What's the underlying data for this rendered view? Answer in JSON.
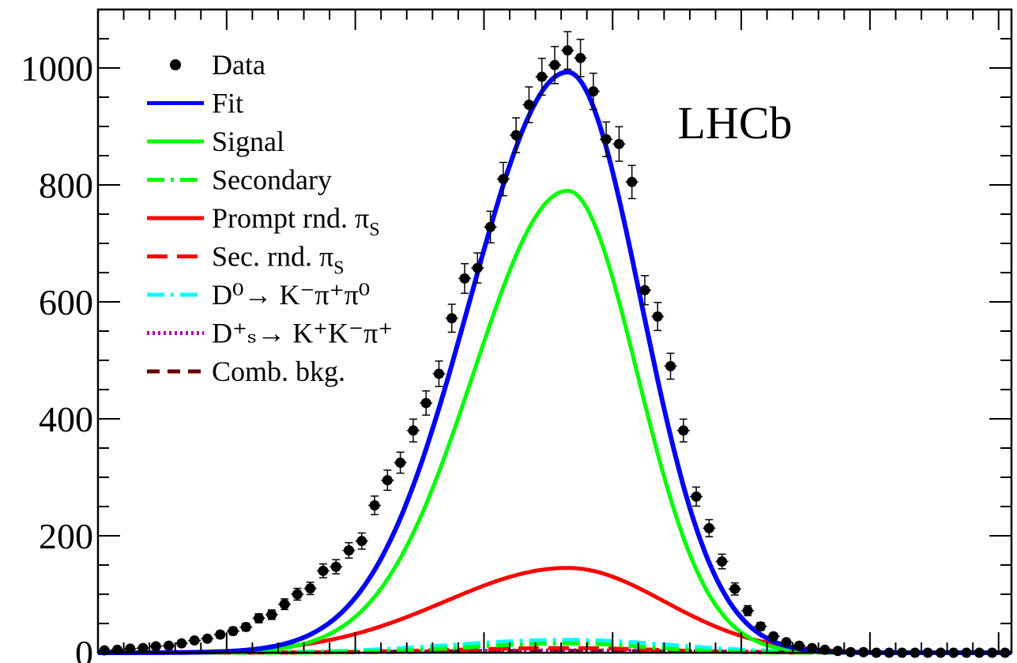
{
  "chart_data": {
    "type": "scatter",
    "title": "",
    "xlabel": "",
    "ylabel": "",
    "annotation": "LHCb",
    "ylim": [
      0,
      1100
    ],
    "xlim": [
      0,
      71
    ],
    "y_ticks": [
      0,
      200,
      400,
      600,
      800,
      1000
    ],
    "y_tick_labels": [
      "0",
      "200",
      "400",
      "600",
      "800",
      "1000"
    ],
    "grid": false,
    "legend_position": "top-left",
    "legend": [
      {
        "key": "data",
        "label": "Data",
        "style": "marker",
        "color": "#000000"
      },
      {
        "key": "fit",
        "label": "Fit",
        "style": "solid",
        "color": "#0000ff"
      },
      {
        "key": "signal",
        "label": "Signal",
        "style": "solid",
        "color": "#00ff00"
      },
      {
        "key": "secondary",
        "label": "Secondary",
        "style": "dashdot",
        "color": "#00ff00"
      },
      {
        "key": "prompt_rnd",
        "label": "Prompt rnd. π",
        "sub": "S",
        "style": "solid",
        "color": "#ff0000"
      },
      {
        "key": "sec_rnd",
        "label": "Sec. rnd. π",
        "sub": "S",
        "style": "longdash",
        "color": "#ff0000"
      },
      {
        "key": "d0_kpipi0",
        "label": "D⁰→ K⁻π⁺π⁰",
        "style": "dashdot",
        "color": "#00ffff"
      },
      {
        "key": "ds_kkpi",
        "label": "D⁺ₛ→ K⁺K⁻π⁺",
        "style": "dotted",
        "color": "#aa00aa"
      },
      {
        "key": "comb_bkg",
        "label": "Comb. bkg.",
        "style": "dashed",
        "color": "#660000"
      }
    ],
    "data": {
      "x": [
        0.5,
        1.5,
        2.5,
        3.5,
        4.5,
        5.5,
        6.5,
        7.5,
        8.5,
        9.5,
        10.5,
        11.5,
        12.5,
        13.5,
        14.5,
        15.5,
        16.5,
        17.5,
        18.5,
        19.5,
        20.5,
        21.5,
        22.5,
        23.5,
        24.5,
        25.5,
        26.5,
        27.5,
        28.5,
        29.5,
        30.5,
        31.5,
        32.5,
        33.5,
        34.5,
        35.5,
        36.5,
        37.5,
        38.5,
        39.5,
        40.5,
        41.5,
        42.5,
        43.5,
        44.5,
        45.5,
        46.5,
        47.5,
        48.5,
        49.5,
        50.5,
        51.5,
        52.5,
        53.5,
        54.5,
        55.5,
        56.5,
        57.5,
        58.5,
        59.5,
        60.5,
        61.5,
        62.5,
        63.5,
        64.5,
        65.5,
        66.5,
        67.5,
        68.5,
        69.5,
        70.5
      ],
      "y": [
        4,
        5,
        7,
        8,
        11,
        12,
        16,
        21,
        24,
        31,
        37,
        44,
        59,
        65,
        83,
        100,
        110,
        140,
        147,
        175,
        191,
        252,
        295,
        325,
        380,
        427,
        477,
        572,
        640,
        658,
        728,
        810,
        885,
        937,
        985,
        1005,
        1030,
        1017,
        960,
        878,
        870,
        805,
        620,
        575,
        490,
        380,
        267,
        213,
        156,
        109,
        72,
        45,
        28,
        18,
        12,
        8,
        5,
        3,
        1,
        1,
        0,
        0,
        0,
        0,
        0,
        0,
        0,
        0,
        0,
        0,
        0
      ],
      "err": [
        2,
        2.2,
        2.6,
        2.8,
        3.3,
        3.5,
        4,
        4.6,
        4.9,
        5.6,
        6.1,
        6.6,
        7.7,
        8.1,
        9.1,
        10,
        10.5,
        11.8,
        12.1,
        13.2,
        13.8,
        15.9,
        17.2,
        18,
        19.5,
        20.7,
        21.8,
        23.9,
        25.3,
        25.7,
        27,
        28.5,
        29.7,
        30.6,
        31.4,
        31.7,
        32.1,
        31.9,
        31,
        29.6,
        29.5,
        28.4,
        24.9,
        24,
        22.1,
        19.5,
        16.3,
        14.6,
        12.5,
        10.4,
        8.5,
        6.7,
        5.3,
        4.2,
        3.5,
        2.8,
        2.2,
        1.7,
        1,
        1,
        0,
        0,
        0,
        0,
        0,
        0,
        0,
        0,
        0,
        0,
        0
      ]
    },
    "curves": {
      "peak_x": 36.5,
      "fit": {
        "amplitude": 993,
        "sigma_left": 7.6,
        "sigma_right": 5.7
      },
      "signal": {
        "amplitude": 790,
        "sigma_left": 7.3,
        "sigma_right": 5.4
      },
      "prompt_rnd": {
        "amplitude": 145,
        "sigma_left": 9.5,
        "sigma_right": 7.5
      },
      "secondary": {
        "amplitude": 16,
        "sigma_left": 7.5,
        "sigma_right": 6.0
      },
      "sec_rnd": {
        "amplitude": 8,
        "sigma_left": 9.0,
        "sigma_right": 7.0
      },
      "d0_kpipi0": {
        "amplitude": 22,
        "sigma_left": 9.0,
        "sigma_right": 8.0
      },
      "ds_kkpi": {
        "amplitude": 4,
        "sigma_left": 10.0,
        "sigma_right": 10.0
      },
      "comb_bkg": {
        "amplitude": 3,
        "sigma_left": 12.0,
        "sigma_right": 12.0
      }
    }
  }
}
